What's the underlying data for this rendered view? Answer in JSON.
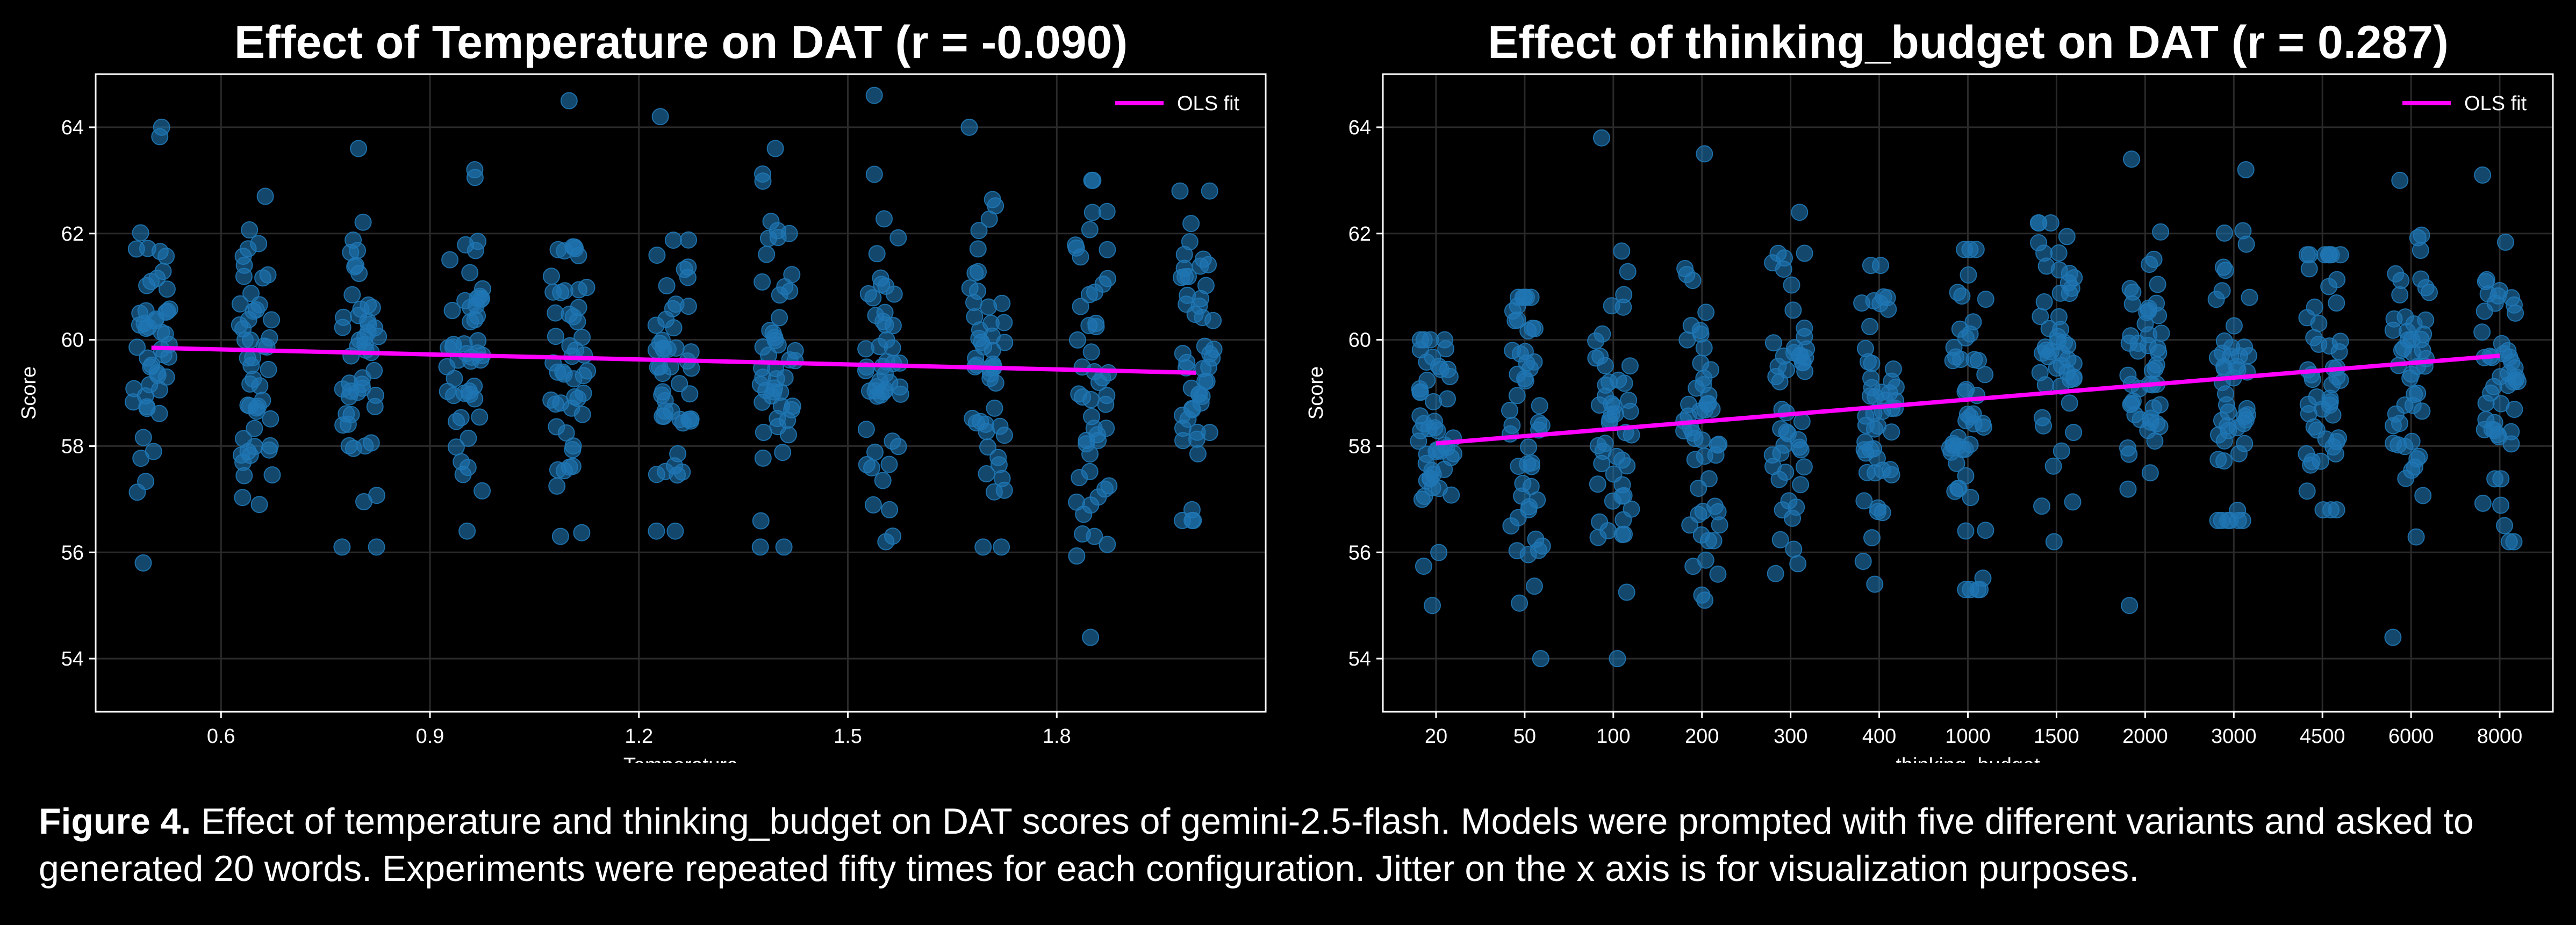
{
  "caption": {
    "lead": "Figure 4.",
    "text": " Effect of temperature and thinking_budget on DAT scores of gemini-2.5-flash. Models were prompted with five different variants and asked to generated 20 words. Experiments were repeated fifty times for each configuration. Jitter on the x axis is for visualization purposes."
  },
  "chart_data": [
    {
      "type": "scatter",
      "title": "Effect of Temperature on DAT (r = -0.090)",
      "xlabel": "Temperature",
      "ylabel": "Score",
      "x_scale": "linear",
      "xlim": [
        0.42,
        2.1
      ],
      "ylim": [
        53,
        65
      ],
      "xticks": [
        "0.6",
        "0.9",
        "1.2",
        "1.5",
        "1.8"
      ],
      "xtick_values": [
        0.6,
        0.9,
        1.2,
        1.5,
        1.8
      ],
      "yticks": [
        "54",
        "56",
        "58",
        "60",
        "62",
        "64"
      ],
      "ytick_values": [
        54,
        56,
        58,
        60,
        62,
        64
      ],
      "grid": true,
      "legend": {
        "position": "top-right",
        "entries": [
          "OLS fit"
        ]
      },
      "colors": {
        "points": "#1f77b4",
        "fit": "#ff00ff"
      },
      "groups": [
        {
          "x": 0.5,
          "mean": 59.8,
          "sd": 1.45,
          "min": 55.8,
          "max": 64.0
        },
        {
          "x": 0.65,
          "mean": 59.7,
          "sd": 1.4,
          "min": 56.9,
          "max": 62.7
        },
        {
          "x": 0.8,
          "mean": 59.6,
          "sd": 1.45,
          "min": 56.1,
          "max": 63.6
        },
        {
          "x": 0.95,
          "mean": 59.7,
          "sd": 1.45,
          "min": 56.4,
          "max": 63.2
        },
        {
          "x": 1.1,
          "mean": 59.6,
          "sd": 1.5,
          "min": 56.3,
          "max": 64.5
        },
        {
          "x": 1.25,
          "mean": 59.6,
          "sd": 1.4,
          "min": 56.4,
          "max": 64.2
        },
        {
          "x": 1.4,
          "mean": 59.5,
          "sd": 1.5,
          "min": 56.1,
          "max": 63.6
        },
        {
          "x": 1.55,
          "mean": 59.5,
          "sd": 1.55,
          "min": 56.2,
          "max": 64.6
        },
        {
          "x": 1.7,
          "mean": 59.5,
          "sd": 1.5,
          "min": 56.1,
          "max": 64.0
        },
        {
          "x": 1.85,
          "mean": 59.3,
          "sd": 1.6,
          "min": 54.4,
          "max": 63.0
        },
        {
          "x": 2.0,
          "mean": 59.4,
          "sd": 1.5,
          "min": 56.6,
          "max": 62.8
        }
      ],
      "fit": {
        "x": [
          0.5,
          2.0
        ],
        "y": [
          59.85,
          59.38
        ]
      }
    },
    {
      "type": "scatter",
      "title": "Effect of thinking_budget on DAT (r = 0.287)",
      "xlabel": "thinking_budget",
      "ylabel": "Score",
      "x_scale": "categorical",
      "categories": [
        "20",
        "50",
        "100",
        "200",
        "300",
        "400",
        "1000",
        "1500",
        "2000",
        "3000",
        "4500",
        "6000",
        "8000"
      ],
      "ylim": [
        53,
        65
      ],
      "yticks": [
        "54",
        "56",
        "58",
        "60",
        "62",
        "64"
      ],
      "ytick_values": [
        54,
        56,
        58,
        60,
        62,
        64
      ],
      "grid": true,
      "legend": {
        "position": "top-right",
        "entries": [
          "OLS fit"
        ]
      },
      "colors": {
        "points": "#1f77b4",
        "fit": "#ff00ff"
      },
      "groups": [
        {
          "x": "20",
          "mean": 58.3,
          "sd": 1.1,
          "min": 55.0,
          "max": 60.0
        },
        {
          "x": "50",
          "mean": 58.2,
          "sd": 1.35,
          "min": 54.0,
          "max": 60.8
        },
        {
          "x": "100",
          "mean": 58.2,
          "sd": 1.75,
          "min": 54.0,
          "max": 63.8
        },
        {
          "x": "200",
          "mean": 58.5,
          "sd": 1.6,
          "min": 55.1,
          "max": 63.5
        },
        {
          "x": "300",
          "mean": 58.7,
          "sd": 1.4,
          "min": 55.6,
          "max": 62.4
        },
        {
          "x": "400",
          "mean": 58.8,
          "sd": 1.3,
          "min": 55.4,
          "max": 61.4
        },
        {
          "x": "1000",
          "mean": 58.7,
          "sd": 1.45,
          "min": 55.3,
          "max": 61.7
        },
        {
          "x": "1500",
          "mean": 59.5,
          "sd": 1.35,
          "min": 56.2,
          "max": 62.2
        },
        {
          "x": "2000",
          "mean": 59.4,
          "sd": 1.45,
          "min": 55.0,
          "max": 63.4
        },
        {
          "x": "3000",
          "mean": 59.2,
          "sd": 1.5,
          "min": 56.6,
          "max": 63.2
        },
        {
          "x": "4500",
          "mean": 59.2,
          "sd": 1.3,
          "min": 56.8,
          "max": 61.6
        },
        {
          "x": "6000",
          "mean": 59.4,
          "sd": 1.45,
          "min": 54.4,
          "max": 63.0
        },
        {
          "x": "8000",
          "mean": 59.3,
          "sd": 1.5,
          "min": 56.2,
          "max": 63.1
        }
      ],
      "fit": {
        "x": [
          "20",
          "8000"
        ],
        "y": [
          58.05,
          59.7
        ]
      }
    }
  ]
}
